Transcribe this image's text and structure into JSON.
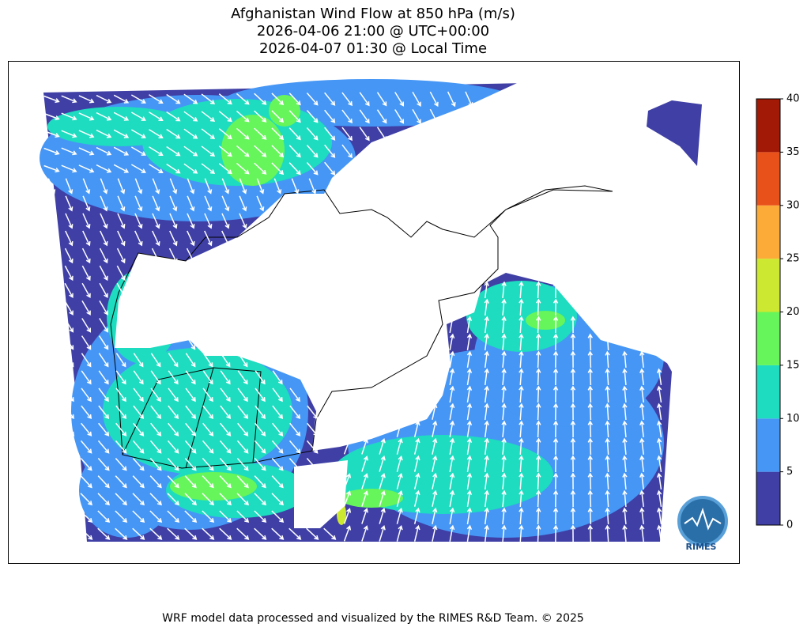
{
  "title": [
    "Afghanistan Wind Flow at 850 hPa (m/s)",
    "2026-04-06 21:00 @ UTC+00:00",
    "2026-04-07 01:30 @ Local Time"
  ],
  "colorbar": {
    "levels": [
      0,
      5,
      10,
      15,
      20,
      25,
      30,
      35,
      40
    ],
    "colors": [
      "#3f3fa6",
      "#4596f5",
      "#1edcbf",
      "#66f55a",
      "#cde830",
      "#fdab38",
      "#e9511a",
      "#a21a06"
    ]
  },
  "logo": "RIMES",
  "footer": "WRF model data processed and visualized by the RIMES R&D Team. © 2025"
}
